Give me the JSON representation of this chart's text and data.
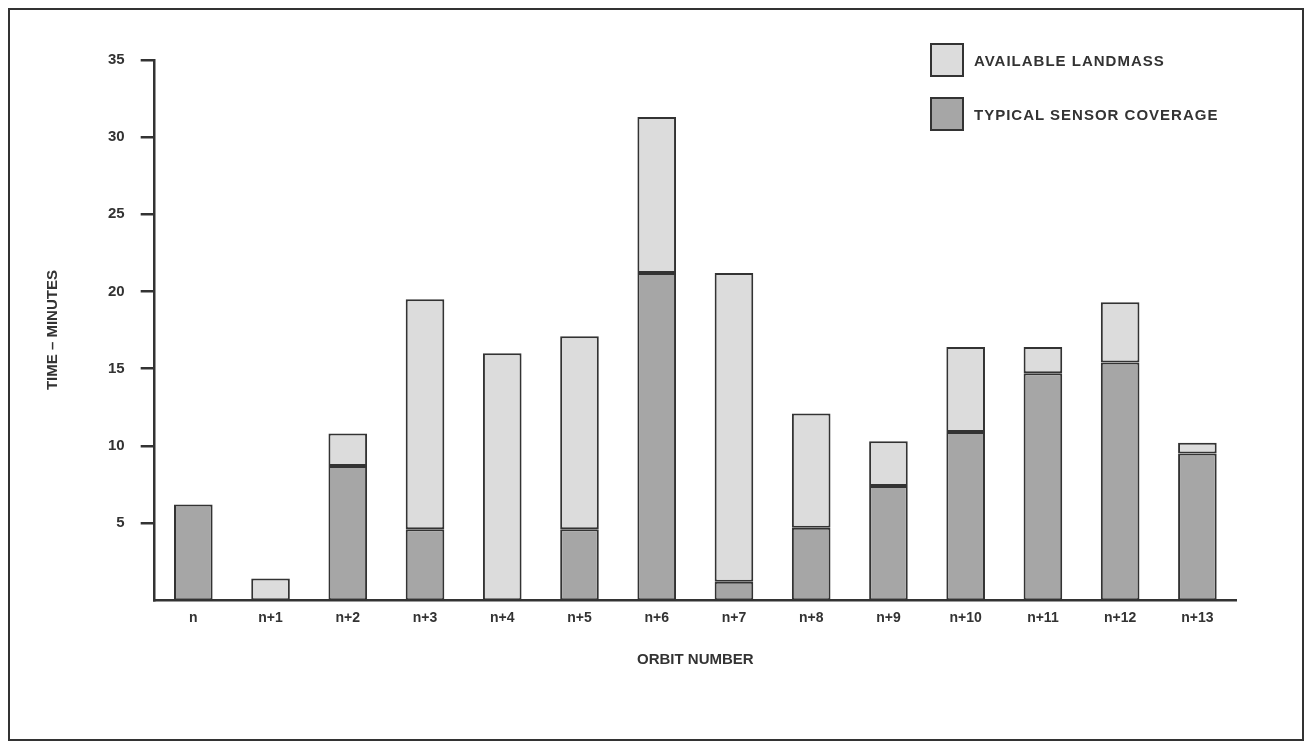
{
  "chart_data": {
    "type": "bar",
    "xlabel": "ORBIT NUMBER",
    "ylabel": "TIME – MINUTES",
    "stacked": true,
    "categories": [
      "n",
      "n+1",
      "n+2",
      "n+3",
      "n+4",
      "n+5",
      "n+6",
      "n+7",
      "n+8",
      "n+9",
      "n+10",
      "n+11",
      "n+12",
      "n+13"
    ],
    "series": [
      {
        "name": "TYPICAL SENSOR COVERAGE",
        "color": "#a6a6a6",
        "values": [
          6.2,
          null,
          8.7,
          4.6,
          null,
          4.6,
          21.2,
          1.2,
          4.7,
          7.4,
          10.9,
          14.7,
          15.4,
          9.5
        ]
      },
      {
        "name": "AVAILABLE LANDMASS",
        "color": "#dcdcdc",
        "values": [
          null,
          1.4,
          2.1,
          14.9,
          16.0,
          12.5,
          10.1,
          20.0,
          7.4,
          2.9,
          5.5,
          1.7,
          3.9,
          0.7
        ]
      }
    ],
    "ylim": [
      0,
      35
    ],
    "yticks": [
      5,
      10,
      15,
      20,
      25,
      30,
      35
    ],
    "grid": false,
    "legend": "top right"
  }
}
